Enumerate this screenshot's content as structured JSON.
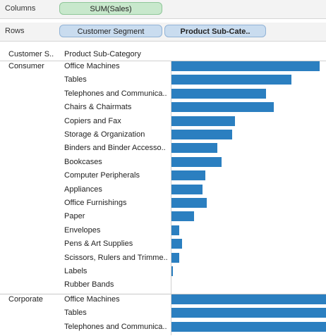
{
  "shelves": {
    "columns": {
      "label": "Columns",
      "pills": [
        "SUM(Sales)"
      ]
    },
    "rows": {
      "label": "Rows",
      "pills": [
        "Customer Segment",
        "Product Sub-Cate.."
      ]
    }
  },
  "headers": {
    "segment": "Customer S..",
    "subcategory": "Product Sub-Category"
  },
  "colors": {
    "bar": "#2b7fc0"
  },
  "chart_data": {
    "type": "bar",
    "orientation": "horizontal",
    "groups": [
      {
        "segment": "Consumer",
        "rows": [
          {
            "label": "Office Machines",
            "value": 1.0
          },
          {
            "label": "Tables",
            "value": 0.81
          },
          {
            "label": "Telephones and Communica..",
            "value": 0.64
          },
          {
            "label": "Chairs & Chairmats",
            "value": 0.69
          },
          {
            "label": "Copiers and Fax",
            "value": 0.43
          },
          {
            "label": "Storage & Organization",
            "value": 0.41
          },
          {
            "label": "Binders and Binder Accesso..",
            "value": 0.31
          },
          {
            "label": "Bookcases",
            "value": 0.34
          },
          {
            "label": "Computer Peripherals",
            "value": 0.23
          },
          {
            "label": "Appliances",
            "value": 0.21
          },
          {
            "label": "Office Furnishings",
            "value": 0.24
          },
          {
            "label": "Paper",
            "value": 0.15
          },
          {
            "label": "Envelopes",
            "value": 0.05
          },
          {
            "label": "Pens & Art Supplies",
            "value": 0.07
          },
          {
            "label": "Scissors, Rulers and Trimme..",
            "value": 0.05
          },
          {
            "label": "Labels",
            "value": 0.01
          },
          {
            "label": "Rubber Bands",
            "value": 0.0
          }
        ]
      },
      {
        "segment": "Corporate",
        "rows": [
          {
            "label": "Office Machines",
            "value": 1.12
          },
          {
            "label": "Tables",
            "value": 1.12
          },
          {
            "label": "Telephones and Communica..",
            "value": 1.12
          }
        ]
      }
    ]
  }
}
